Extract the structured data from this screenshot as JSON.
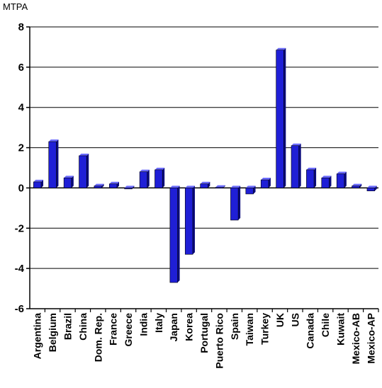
{
  "chart_data": {
    "type": "bar",
    "title": "",
    "ylabel": "MTPA",
    "xlabel": "",
    "ylim": [
      -6,
      8
    ],
    "yticks": [
      8,
      6,
      4,
      2,
      0,
      -2,
      -4,
      -6
    ],
    "ytick_labels": [
      "8",
      "6",
      "4",
      "2",
      "0",
      "-2",
      "-4",
      "-6"
    ],
    "grid": "horizontal",
    "legend": "none",
    "bar_color": "#1f1fd6",
    "bar_side_color": "#0a0a7a",
    "bar_top_color": "#6b6bff",
    "categories": [
      "Argentina",
      "Belgium",
      "Brazil",
      "China",
      "Dom. Rep.",
      "France",
      "Greece",
      "India",
      "Italy",
      "Japan",
      "Korea",
      "Portugal",
      "Puerto Rico",
      "Spain",
      "Taiwan",
      "Turkey",
      "UK",
      "US",
      "Canada",
      "Chile",
      "Kuwait",
      "Mexico-AB",
      "Mexico-AP"
    ],
    "values": [
      0.3,
      2.3,
      0.5,
      1.6,
      0.1,
      0.2,
      -0.05,
      0.8,
      0.9,
      -4.7,
      -3.3,
      0.2,
      0.03,
      -1.6,
      -0.3,
      0.4,
      6.85,
      2.1,
      0.9,
      0.5,
      0.7,
      0.1,
      -0.15
    ]
  }
}
